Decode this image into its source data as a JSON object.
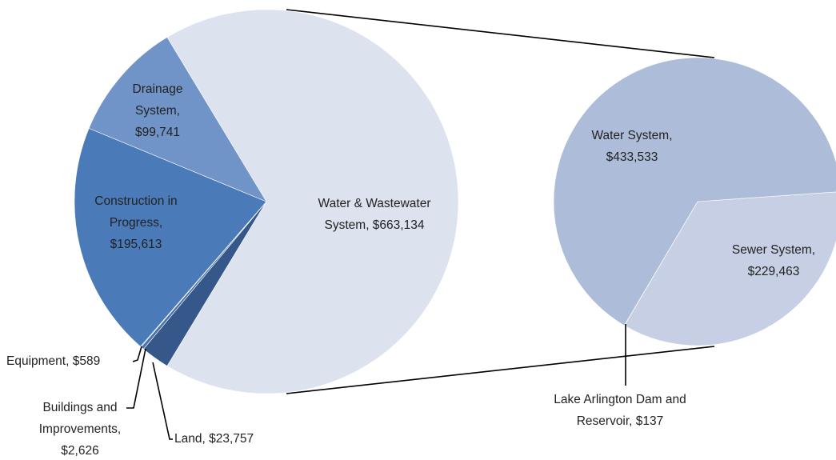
{
  "chart_data": [
    {
      "type": "pie",
      "values": [
        663134,
        23757,
        2626,
        589,
        195613,
        99741
      ],
      "value_labels": [
        [
          "Water & Wastewater",
          "System,  $663,134"
        ],
        [
          "Land,  $23,757"
        ],
        [
          "Buildings and",
          "Improvements,",
          "$2,626"
        ],
        [
          "Equipment,  $589"
        ],
        [
          "Construction in",
          "Progress,",
          "$195,613"
        ],
        [
          "Drainage",
          "System,",
          "$99,741"
        ]
      ],
      "colors": [
        "#dce2ee",
        "#35578a",
        "#4a72a8",
        "#5a86bf",
        "#4a7bb8",
        "#7093c8"
      ]
    },
    {
      "type": "pie",
      "values": [
        229463,
        137,
        433533
      ],
      "value_labels": [
        [
          "Sewer System,",
          "$229,463"
        ],
        [
          "Lake Arlington Dam and",
          "Reservoir,  $137"
        ],
        [
          "Water System,",
          "$433,533"
        ]
      ],
      "colors": [
        "#c6cfe3",
        "#b9c6de",
        "#adbdd9"
      ]
    }
  ]
}
